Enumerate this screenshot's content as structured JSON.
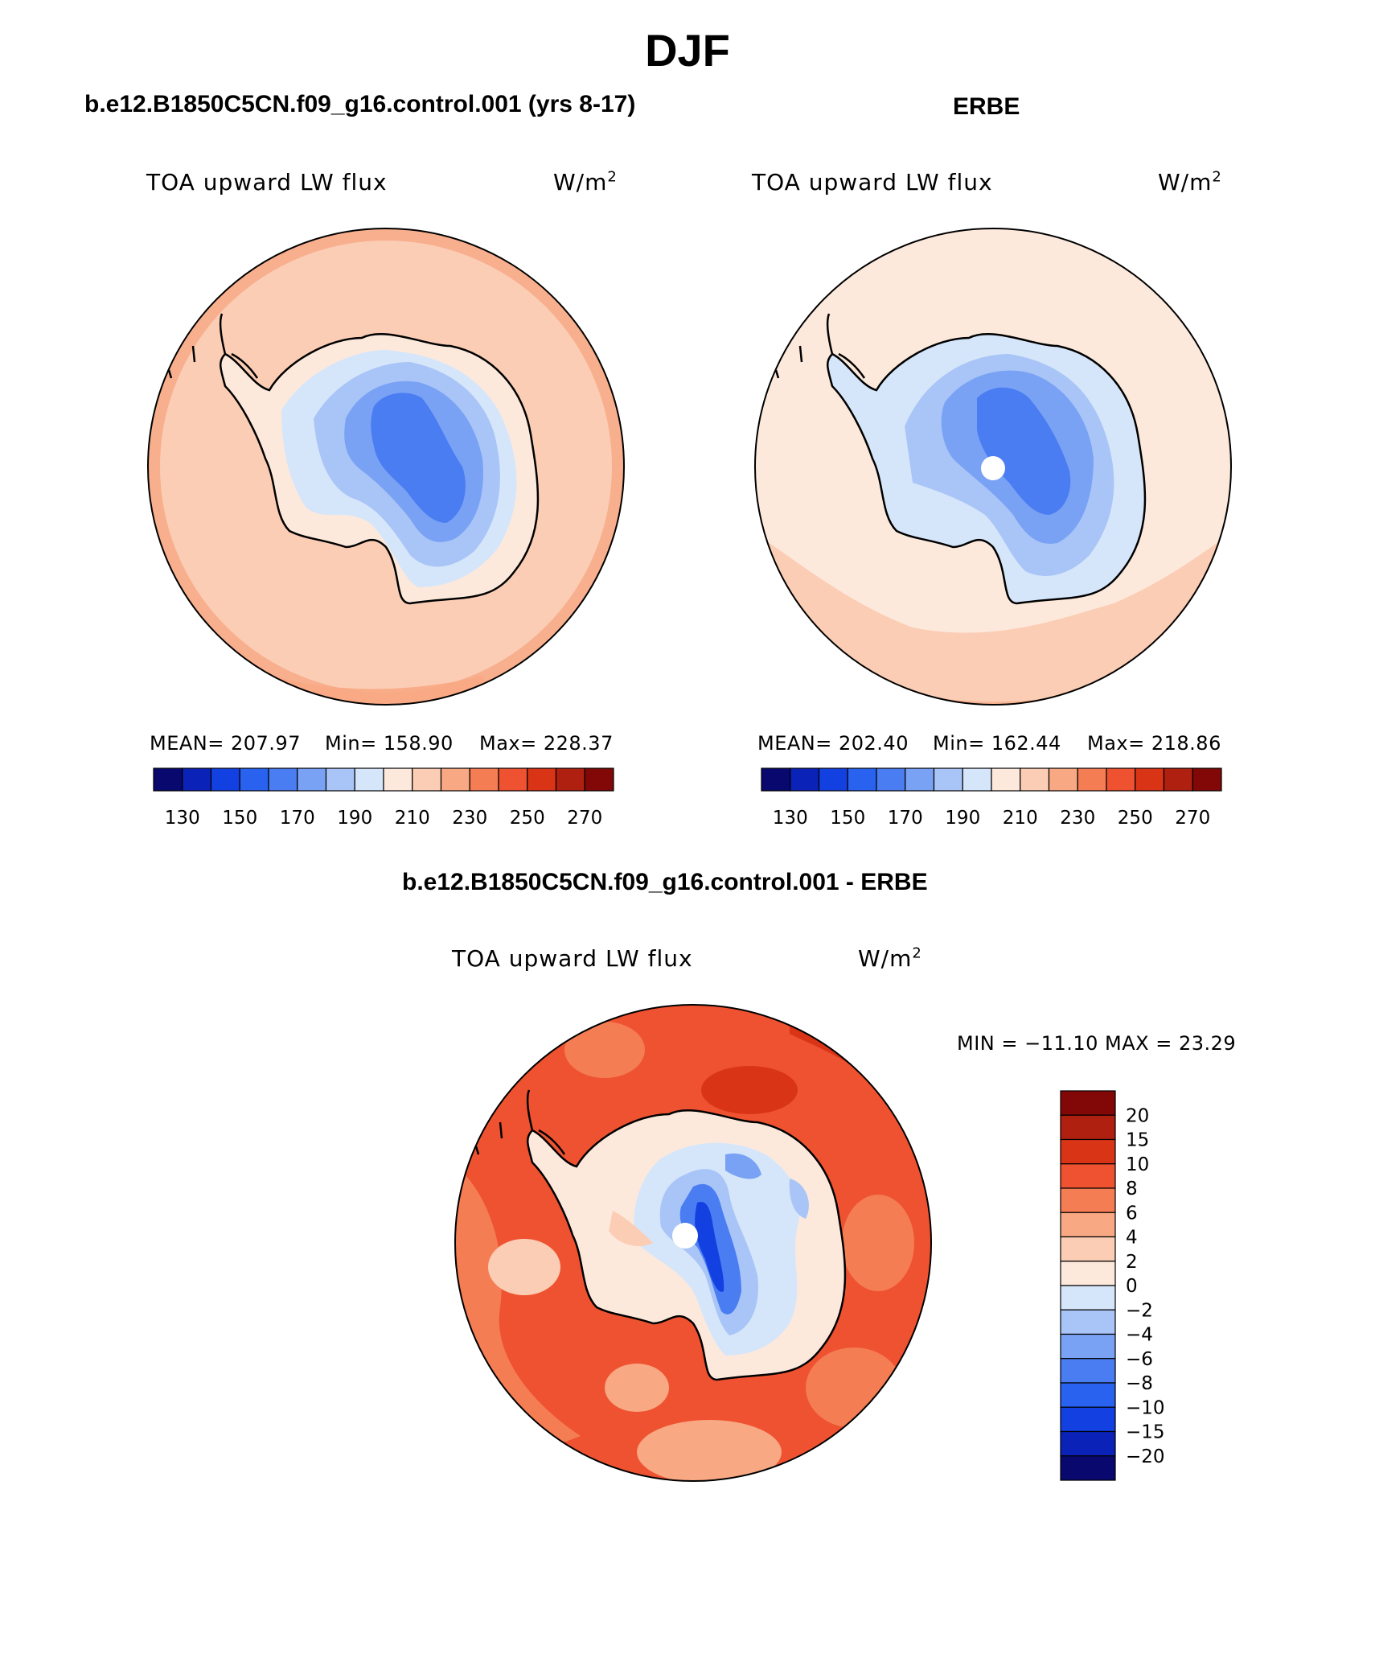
{
  "figure": {
    "season": "DJF"
  },
  "panels": [
    {
      "id": "model",
      "title": "b.e12.B1850C5CN.f09_g16.control.001 (yrs 8-17)",
      "variable": "TOA upward LW flux",
      "units_base": "W/m",
      "units_exp": "2",
      "mean_label": "MEAN= 207.97",
      "min_label": "Min= 158.90",
      "max_label": "Max= 228.37",
      "colorbar_ticks": [
        "130",
        "150",
        "170",
        "190",
        "210",
        "230",
        "250",
        "270"
      ]
    },
    {
      "id": "obs",
      "title": "ERBE",
      "variable": "TOA upward LW flux",
      "units_base": "W/m",
      "units_exp": "2",
      "mean_label": "MEAN= 202.40",
      "min_label": "Min= 162.44",
      "max_label": "Max= 218.86",
      "colorbar_ticks": [
        "130",
        "150",
        "170",
        "190",
        "210",
        "230",
        "250",
        "270"
      ]
    },
    {
      "id": "diff",
      "title": "b.e12.B1850C5CN.f09_g16.control.001 - ERBE",
      "variable": "TOA upward LW flux",
      "units_base": "W/m",
      "units_exp": "2",
      "minmax_label": "MIN = −11.10 MAX =   23.29",
      "colorbar_ticks": [
        "20",
        "15",
        "10",
        "8",
        "6",
        "4",
        "2",
        "0",
        "−2",
        "−4",
        "−6",
        "−8",
        "−10",
        "−15",
        "−20"
      ]
    }
  ],
  "colors": {
    "abs_scale": [
      "#08086e",
      "#0a22b8",
      "#1340e0",
      "#2a62f0",
      "#4a7df2",
      "#7aa2f4",
      "#a9c5f7",
      "#d6e6fa",
      "#fde9dc",
      "#fbcdb5",
      "#f8a883",
      "#f47d54",
      "#ef5230",
      "#da3416",
      "#b02010",
      "#820808"
    ],
    "diff_scale": [
      "#08086e",
      "#0a22b8",
      "#1340e0",
      "#2a62f0",
      "#4a7df2",
      "#7aa2f4",
      "#a9c5f7",
      "#d6e6fa",
      "#fde9dc",
      "#fbcdb5",
      "#f8a883",
      "#f47d54",
      "#ef5230",
      "#da3416",
      "#b02010",
      "#820808"
    ]
  }
}
